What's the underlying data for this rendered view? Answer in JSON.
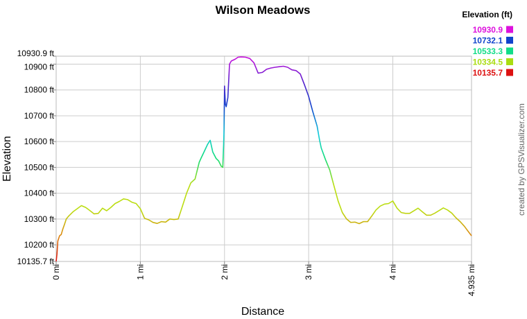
{
  "chart_data": {
    "type": "line",
    "title": "Wilson Meadows",
    "xlabel": "Distance",
    "ylabel": "Elevation",
    "xlim": [
      0,
      4.935
    ],
    "ylim": [
      10135.7,
      10930.9
    ],
    "grid": true,
    "x_ticks": [
      {
        "value": 0,
        "label": "0 mi"
      },
      {
        "value": 1,
        "label": "1 mi"
      },
      {
        "value": 2,
        "label": "2 mi"
      },
      {
        "value": 3,
        "label": "3 mi"
      },
      {
        "value": 4,
        "label": "4 mi"
      },
      {
        "value": 4.935,
        "label": "4.935 mi"
      }
    ],
    "y_ticks": [
      {
        "value": 10135.7,
        "label": "10135.7 ft"
      },
      {
        "value": 10200,
        "label": "10200 ft"
      },
      {
        "value": 10300,
        "label": "10300 ft"
      },
      {
        "value": 10400,
        "label": "10400 ft"
      },
      {
        "value": 10500,
        "label": "10500 ft"
      },
      {
        "value": 10600,
        "label": "10600 ft"
      },
      {
        "value": 10700,
        "label": "10700 ft"
      },
      {
        "value": 10800,
        "label": "10800 ft"
      },
      {
        "value": 10900,
        "label": "10900 ft"
      },
      {
        "value": 10930.9,
        "label": "10930.9 ft"
      }
    ],
    "legend": {
      "title": "Elevation (ft)",
      "placement": "top-right",
      "entries": [
        {
          "label": "10930.9",
          "color": "#dd11dd"
        },
        {
          "label": "10732.1",
          "color": "#1144cc"
        },
        {
          "label": "10533.3",
          "color": "#11dd88"
        },
        {
          "label": "10334.5",
          "color": "#aadd11"
        },
        {
          "label": "10135.7",
          "color": "#dd1111"
        }
      ]
    },
    "series": [
      {
        "x": [
          0.0,
          0.01,
          0.02,
          0.04,
          0.06,
          0.08,
          0.1,
          0.12,
          0.15,
          0.2,
          0.25,
          0.3,
          0.35,
          0.4,
          0.45,
          0.5,
          0.55,
          0.6,
          0.65,
          0.7,
          0.75,
          0.8,
          0.85,
          0.9,
          0.95,
          1.0,
          1.05,
          1.1,
          1.15,
          1.2,
          1.25,
          1.3,
          1.35,
          1.4,
          1.45,
          1.5,
          1.55,
          1.6,
          1.65,
          1.7,
          1.72,
          1.75,
          1.8,
          1.83,
          1.86,
          1.9,
          1.93,
          1.96,
          1.98,
          1.99,
          1.995,
          2.0,
          2.01,
          2.02,
          2.04,
          2.06,
          2.08,
          2.1,
          2.13,
          2.16,
          2.2,
          2.25,
          2.3,
          2.35,
          2.4,
          2.45,
          2.5,
          2.55,
          2.6,
          2.65,
          2.7,
          2.75,
          2.8,
          2.85,
          2.9,
          2.95,
          3.0,
          3.05,
          3.1,
          3.13,
          3.15,
          3.2,
          3.25,
          3.3,
          3.35,
          3.4,
          3.45,
          3.5,
          3.55,
          3.6,
          3.65,
          3.7,
          3.75,
          3.8,
          3.85,
          3.9,
          3.95,
          4.0,
          4.05,
          4.1,
          4.15,
          4.2,
          4.25,
          4.3,
          4.35,
          4.4,
          4.45,
          4.5,
          4.55,
          4.6,
          4.65,
          4.7,
          4.75,
          4.8,
          4.85,
          4.9,
          4.935
        ],
        "y": [
          10136,
          10165,
          10215,
          10235,
          10240,
          10262,
          10280,
          10300,
          10312,
          10328,
          10340,
          10352,
          10345,
          10333,
          10320,
          10322,
          10342,
          10332,
          10345,
          10360,
          10368,
          10378,
          10375,
          10365,
          10360,
          10340,
          10303,
          10297,
          10287,
          10283,
          10290,
          10288,
          10300,
          10298,
          10300,
          10350,
          10400,
          10440,
          10455,
          10520,
          10535,
          10555,
          10590,
          10605,
          10560,
          10535,
          10525,
          10505,
          10500,
          10590,
          10650,
          10815,
          10745,
          10735,
          10770,
          10900,
          10912,
          10915,
          10920,
          10927,
          10928,
          10927,
          10922,
          10905,
          10865,
          10868,
          10880,
          10885,
          10888,
          10890,
          10892,
          10888,
          10878,
          10875,
          10862,
          10820,
          10775,
          10715,
          10660,
          10605,
          10575,
          10530,
          10490,
          10430,
          10370,
          10325,
          10300,
          10287,
          10288,
          10282,
          10290,
          10290,
          10312,
          10335,
          10350,
          10358,
          10360,
          10370,
          10342,
          10325,
          10322,
          10322,
          10332,
          10342,
          10328,
          10315,
          10315,
          10323,
          10333,
          10343,
          10335,
          10323,
          10305,
          10290,
          10272,
          10250,
          10235
        ]
      }
    ],
    "watermark": "created by GPSVisualizer.com"
  }
}
